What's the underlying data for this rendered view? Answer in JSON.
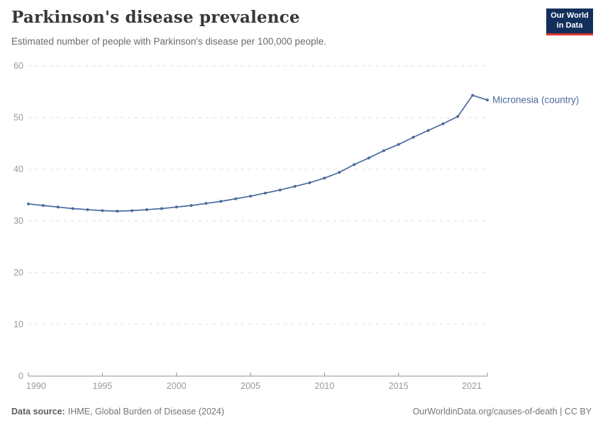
{
  "header": {
    "title": "Parkinson's disease prevalence",
    "subtitle": "Estimated number of people with Parkinson's disease per 100,000 people.",
    "logo": {
      "line1": "Our World",
      "line2": "in Data"
    }
  },
  "footer": {
    "source_label": "Data source:",
    "source_text": "IHME, Global Burden of Disease (2024)",
    "credit": "OurWorldinData.org/causes-of-death | CC BY"
  },
  "colors": {
    "line": "#4c6a9c",
    "grid": "#dcdcdc",
    "axis": "#8f8f8f",
    "tick_text": "#9a9a9a",
    "logo_bg": "#12305b",
    "logo_red": "#dc352e"
  },
  "chart_data": {
    "type": "line",
    "title": "Parkinson's disease prevalence",
    "subtitle": "Estimated number of people with Parkinson's disease per 100,000 people.",
    "xlabel": "",
    "ylabel": "",
    "xlim": [
      1990,
      2021
    ],
    "ylim": [
      0,
      60
    ],
    "yticks": [
      0,
      10,
      20,
      30,
      40,
      50,
      60
    ],
    "xticks": [
      1990,
      1995,
      2000,
      2005,
      2010,
      2015,
      2021
    ],
    "grid": "horizontal-dashed",
    "legend_position": "end-of-line-label",
    "series": [
      {
        "name": "Micronesia (country)",
        "color": "#4c6a9c",
        "x": [
          1990,
          1991,
          1992,
          1993,
          1994,
          1995,
          1996,
          1997,
          1998,
          1999,
          2000,
          2001,
          2002,
          2003,
          2004,
          2005,
          2006,
          2007,
          2008,
          2009,
          2010,
          2011,
          2012,
          2013,
          2014,
          2015,
          2016,
          2017,
          2018,
          2019,
          2020,
          2021
        ],
        "values": [
          33.3,
          33.0,
          32.7,
          32.4,
          32.2,
          32.0,
          31.9,
          32.0,
          32.2,
          32.4,
          32.7,
          33.0,
          33.4,
          33.8,
          34.3,
          34.8,
          35.4,
          36.0,
          36.7,
          37.4,
          38.3,
          39.4,
          40.9,
          42.2,
          43.6,
          44.8,
          46.2,
          47.5,
          48.8,
          50.2,
          54.3,
          53.4
        ]
      }
    ]
  }
}
